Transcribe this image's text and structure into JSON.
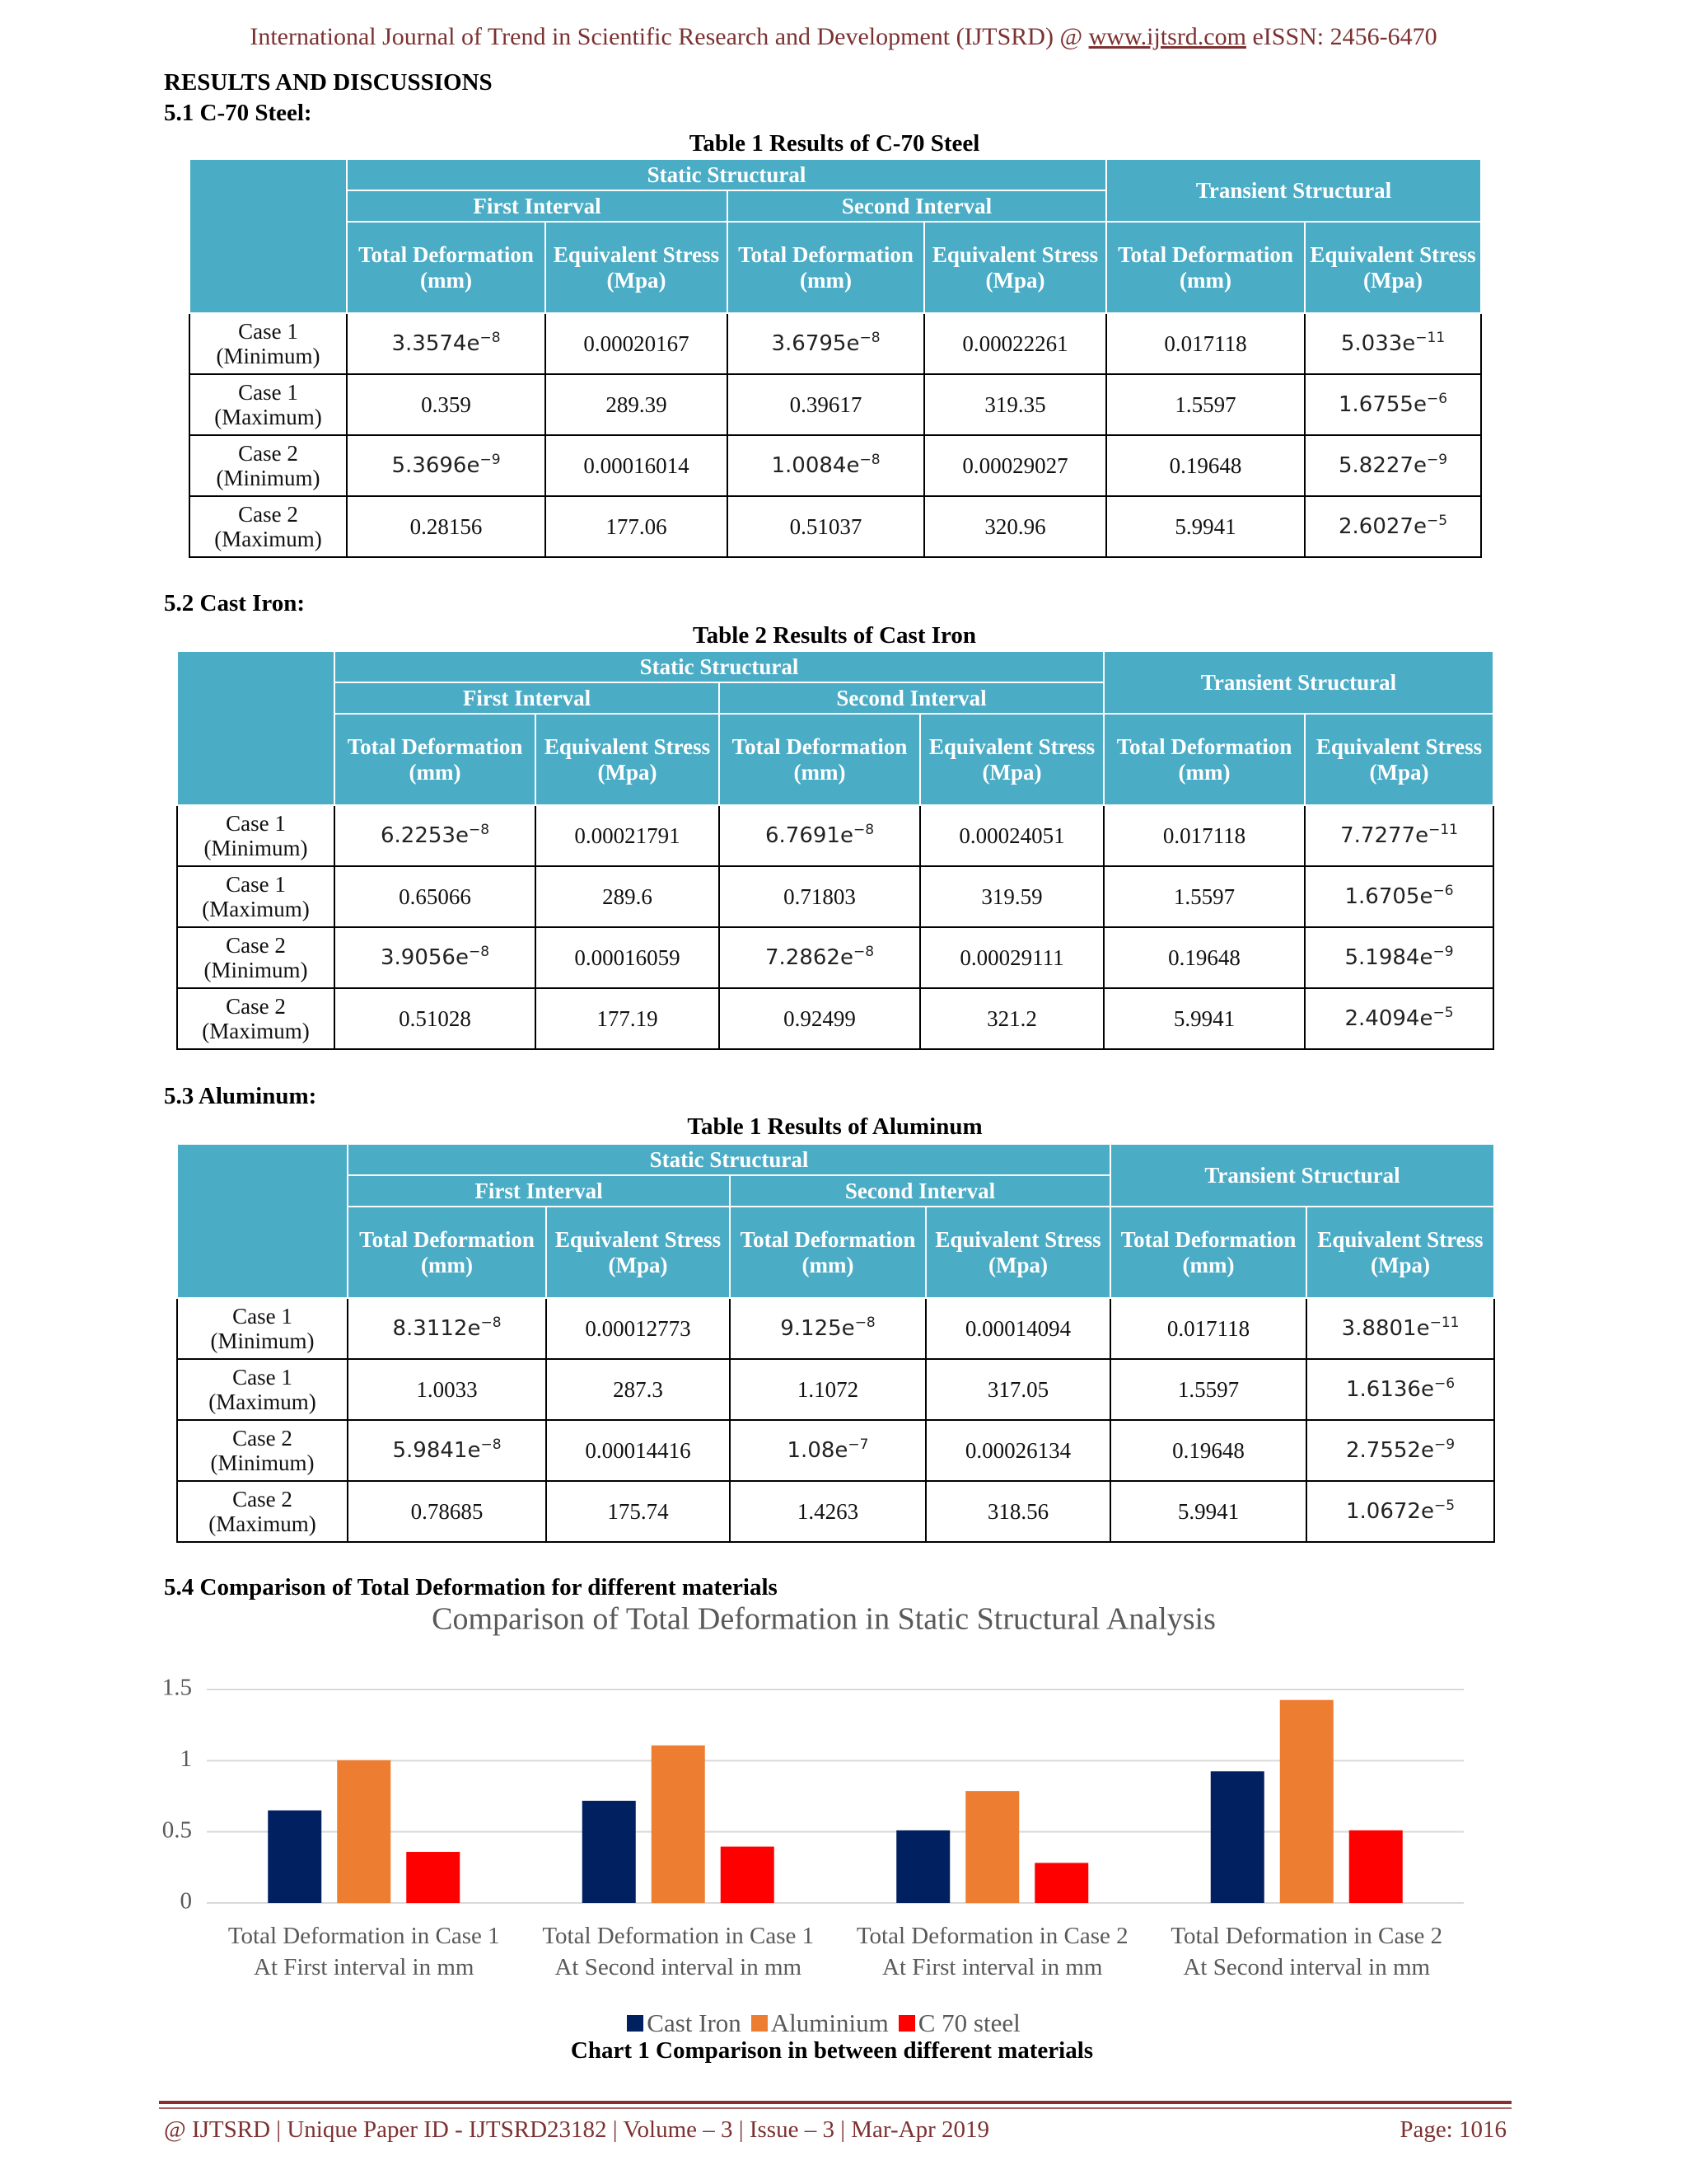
{
  "header": {
    "prefix": "International Journal of Trend in Scientific Research and Development (IJTSRD) @",
    "link": "www.ijtsrd.com",
    "suffix": "eISSN: 2456-6470"
  },
  "section_title": "RESULTS AND DISCUSSIONS",
  "table_header": {
    "static": "Static Structural",
    "transient": "Transient Structural",
    "first": "First Interval",
    "second": "Second Interval",
    "columns": [
      "Total Deformation (mm)",
      "Equivalent Stress (Mpa)",
      "Total Deformation (mm)",
      "Equivalent Stress (Mpa)",
      "Total Deformation (mm)",
      "Equivalent Stress (Mpa)"
    ]
  },
  "tables": [
    {
      "heading": "5.1 C-70 Steel:",
      "caption": "Table 1 Results of C-70 Steel",
      "rows": [
        {
          "label": "Case 1 (Minimum)",
          "cells": [
            {
              "base": "3.3574e",
              "exp": "−8"
            },
            "0.00020167",
            {
              "base": "3.6795e",
              "exp": "−8"
            },
            "0.00022261",
            "0.017118",
            {
              "base": "5.033e",
              "exp": "−11"
            }
          ]
        },
        {
          "label": "Case 1 (Maximum)",
          "cells": [
            "0.359",
            "289.39",
            "0.39617",
            "319.35",
            "1.5597",
            {
              "base": "1.6755e",
              "exp": "−6"
            }
          ]
        },
        {
          "label": "Case 2 (Minimum)",
          "cells": [
            {
              "base": "5.3696e",
              "exp": "−9"
            },
            "0.00016014",
            {
              "base": "1.0084e",
              "exp": "−8"
            },
            "0.00029027",
            "0.19648",
            {
              "base": "5.8227e",
              "exp": "−9"
            }
          ]
        },
        {
          "label": "Case 2 (Maximum)",
          "cells": [
            "0.28156",
            "177.06",
            "0.51037",
            "320.96",
            "5.9941",
            {
              "base": "2.6027e",
              "exp": "−5"
            }
          ]
        }
      ]
    },
    {
      "heading": "5.2 Cast Iron:",
      "caption": "Table 2 Results of Cast Iron",
      "rows": [
        {
          "label": "Case 1 (Minimum)",
          "cells": [
            {
              "base": "6.2253e",
              "exp": "−8"
            },
            "0.00021791",
            {
              "base": "6.7691e",
              "exp": "−8"
            },
            "0.00024051",
            "0.017118",
            {
              "base": "7.7277e",
              "exp": "−11"
            }
          ]
        },
        {
          "label": "Case 1 (Maximum)",
          "cells": [
            "0.65066",
            "289.6",
            "0.71803",
            "319.59",
            "1.5597",
            {
              "base": "1.6705e",
              "exp": "−6"
            }
          ]
        },
        {
          "label": "Case 2 (Minimum)",
          "cells": [
            {
              "base": "3.9056e",
              "exp": "−8"
            },
            "0.00016059",
            {
              "base": "7.2862e",
              "exp": "−8"
            },
            "0.00029111",
            "0.19648",
            {
              "base": "5.1984e",
              "exp": "−9"
            }
          ]
        },
        {
          "label": "Case 2 (Maximum)",
          "cells": [
            "0.51028",
            "177.19",
            "0.92499",
            "321.2",
            "5.9941",
            {
              "base": "2.4094e",
              "exp": "−5"
            }
          ]
        }
      ]
    },
    {
      "heading": "5.3 Aluminum:",
      "caption": "Table 1 Results of Aluminum",
      "rows": [
        {
          "label": "Case 1 (Minimum)",
          "cells": [
            {
              "base": "8.3112e",
              "exp": "−8"
            },
            "0.00012773",
            {
              "base": "9.125e",
              "exp": "−8"
            },
            "0.00014094",
            "0.017118",
            {
              "base": "3.8801e",
              "exp": "−11"
            }
          ]
        },
        {
          "label": "Case 1 (Maximum)",
          "cells": [
            "1.0033",
            "287.3",
            "1.1072",
            "317.05",
            "1.5597",
            {
              "base": "1.6136e",
              "exp": "−6"
            }
          ]
        },
        {
          "label": "Case 2 (Minimum)",
          "cells": [
            {
              "base": "5.9841e",
              "exp": "−8"
            },
            "0.00014416",
            {
              "base": "1.08e",
              "exp": "−7"
            },
            "0.00026134",
            "0.19648",
            {
              "base": "2.7552e",
              "exp": "−9"
            }
          ]
        },
        {
          "label": "Case 2 (Maximum)",
          "cells": [
            "0.78685",
            "175.74",
            "1.4263",
            "318.56",
            "5.9941",
            {
              "base": "1.0672e",
              "exp": "−5"
            }
          ]
        }
      ]
    }
  ],
  "chart_heading": "5.4 Comparison of Total Deformation for different materials",
  "chart_data": {
    "type": "bar",
    "title": "Comparison of Total Deformation in Static Structural Analysis",
    "categories": [
      "Total Deformation in Case 1 At First interval in mm",
      "Total Deformation in Case 1 At Second interval in mm",
      "Total Deformation in Case 2 At First interval in mm",
      "Total Deformation in Case 2 At Second interval in mm"
    ],
    "series": [
      {
        "name": "Cast Iron",
        "color": "#002060",
        "values": [
          0.65066,
          0.71803,
          0.51028,
          0.92499
        ]
      },
      {
        "name": "Aluminium",
        "color": "#ed7d31",
        "values": [
          1.0033,
          1.1072,
          0.78685,
          1.4263
        ]
      },
      {
        "name": "C 70 steel",
        "color": "#ff0000",
        "values": [
          0.359,
          0.39617,
          0.28156,
          0.51037
        ]
      }
    ],
    "ylim": [
      0,
      1.5
    ],
    "yticks": [
      0,
      0.5,
      1,
      1.5
    ],
    "grid": true,
    "legend": "bottom"
  },
  "chart_caption": "Chart 1 Comparison in between different materials",
  "footer": {
    "left": "@ IJTSRD | Unique Paper ID - IJTSRD23182  | Volume – 3 | Issue – 3 | Mar-Apr 2019",
    "right": "Page: 1016"
  }
}
